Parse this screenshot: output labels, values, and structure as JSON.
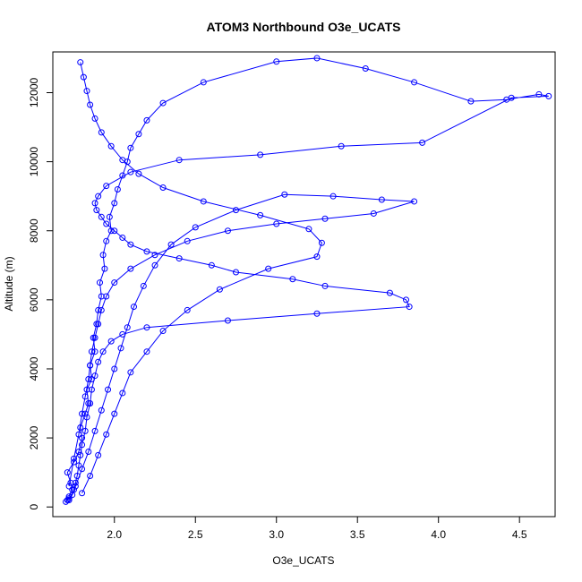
{
  "chart_data": {
    "type": "line",
    "title": "ATOM3 Northbound O3e_UCATS",
    "xlabel": "O3e_UCATS",
    "ylabel": "Altitude (m)",
    "xlim": [
      1.62,
      4.72
    ],
    "ylim": [
      -280,
      13180
    ],
    "xticks": [
      2.0,
      2.5,
      3.0,
      3.5,
      4.0,
      4.5
    ],
    "xtick_labels": [
      "2.0",
      "2.5",
      "3.0",
      "3.5",
      "4.0",
      "4.5"
    ],
    "yticks": [
      0,
      2000,
      4000,
      6000,
      8000,
      10000,
      12000
    ],
    "ytick_labels": [
      "0",
      "2000",
      "4000",
      "6000",
      "8000",
      "10000",
      "12000"
    ],
    "series_color": "#0000ff",
    "marker": "open-circle",
    "series": [
      {
        "values_x": [
          1.7,
          1.72,
          1.74,
          1.73,
          1.71,
          1.75,
          1.78,
          1.8,
          1.79,
          1.82,
          1.84,
          1.83,
          1.86,
          1.85,
          1.88,
          1.87,
          1.89,
          1.9,
          1.92,
          1.91,
          1.94,
          1.93,
          1.95,
          1.98,
          1.97,
          2.0,
          2.02,
          2.05,
          2.08,
          2.1,
          2.15,
          2.2,
          2.3,
          2.55,
          3.0,
          3.25,
          3.55,
          3.85,
          4.2,
          4.42,
          4.62,
          4.68,
          4.45,
          3.9,
          3.4,
          2.9,
          2.4,
          2.1,
          1.95,
          1.9,
          1.88,
          1.89,
          1.92,
          1.95,
          2.0,
          2.05,
          2.1,
          2.2,
          2.4,
          2.6,
          2.75,
          3.1,
          3.3,
          3.7,
          3.8,
          3.82,
          3.25,
          2.7,
          2.2,
          2.05,
          1.98,
          1.93,
          1.9,
          1.88,
          1.86,
          1.85,
          1.83,
          1.82,
          1.8,
          1.79,
          1.78,
          1.77,
          1.76,
          1.75,
          1.74,
          1.72,
          1.71
        ],
        "values_y": [
          150,
          300,
          500,
          700,
          1000,
          1300,
          1600,
          2000,
          2300,
          2700,
          3000,
          3400,
          3700,
          4100,
          4500,
          4900,
          5300,
          5700,
          6100,
          6500,
          6900,
          7300,
          7700,
          8000,
          8400,
          8800,
          9200,
          9600,
          10000,
          10400,
          10800,
          11200,
          11700,
          12300,
          12900,
          13000,
          12700,
          12300,
          11750,
          11800,
          11950,
          11900,
          11850,
          10550,
          10450,
          10200,
          10050,
          9700,
          9300,
          9000,
          8800,
          8600,
          8400,
          8200,
          8000,
          7800,
          7600,
          7400,
          7200,
          7000,
          6800,
          6600,
          6400,
          6200,
          6000,
          5800,
          5600,
          5400,
          5200,
          5000,
          4800,
          4500,
          4200,
          3800,
          3400,
          3000,
          2600,
          2200,
          1800,
          1500,
          1200,
          900,
          700,
          500,
          350,
          250,
          200
        ]
      },
      {
        "values_x": [
          1.72,
          1.76,
          1.8,
          1.84,
          1.88,
          1.92,
          1.96,
          2.0,
          2.04,
          2.08,
          2.12,
          2.18,
          2.25,
          2.35,
          2.5,
          2.75,
          3.05,
          3.35,
          3.65,
          3.85,
          3.6,
          3.3,
          3.0,
          2.7,
          2.45,
          2.25,
          2.1,
          2.0,
          1.95,
          1.92,
          1.9,
          1.88,
          1.86,
          1.85,
          1.84,
          1.82,
          1.8,
          1.78,
          1.75,
          1.72
        ],
        "values_y": [
          200,
          600,
          1100,
          1600,
          2200,
          2800,
          3400,
          4000,
          4600,
          5200,
          5800,
          6400,
          7000,
          7600,
          8100,
          8600,
          9050,
          9000,
          8900,
          8850,
          8500,
          8350,
          8200,
          8000,
          7700,
          7300,
          6900,
          6500,
          6100,
          5700,
          5300,
          4900,
          4500,
          4100,
          3700,
          3200,
          2700,
          2100,
          1400,
          600
        ]
      },
      {
        "values_x": [
          1.8,
          1.85,
          1.9,
          1.95,
          2.0,
          2.05,
          2.1,
          2.2,
          2.3,
          2.45,
          2.65,
          2.95,
          3.25,
          3.28,
          3.2,
          2.9,
          2.55,
          2.3,
          2.15,
          2.05,
          1.98,
          1.92,
          1.88,
          1.85,
          1.83,
          1.81,
          1.79
        ],
        "values_y": [
          400,
          900,
          1500,
          2100,
          2700,
          3300,
          3900,
          4500,
          5100,
          5700,
          6300,
          6900,
          7250,
          7650,
          8050,
          8450,
          8850,
          9250,
          9650,
          10050,
          10450,
          10850,
          11250,
          11650,
          12050,
          12450,
          12880
        ]
      }
    ]
  }
}
